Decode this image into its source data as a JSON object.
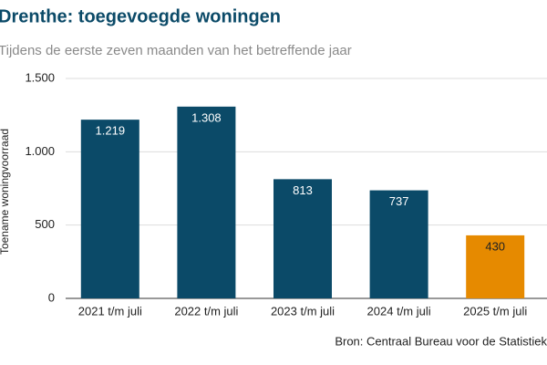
{
  "chart_data": {
    "type": "bar",
    "title": "Drenthe: toegevoegde woningen",
    "subtitle": "Tijdens de eerste zeven maanden van het betreffende jaar",
    "y_label": "Toename woningvoorraad",
    "source": "Bron: Centraal Bureau voor de Statistiek",
    "categories": [
      "2021 t/m juli",
      "2022 t/m juli",
      "2023 t/m juli",
      "2024 t/m juli",
      "2025 t/m juli"
    ],
    "values": [
      1219,
      1308,
      813,
      737,
      430
    ],
    "value_labels": [
      "1.219",
      "1.308",
      "813",
      "737",
      "430"
    ],
    "colors": [
      "#0b4a68",
      "#0b4a68",
      "#0b4a68",
      "#0b4a68",
      "#e68a00"
    ],
    "label_colors": [
      "#ffffff",
      "#ffffff",
      "#ffffff",
      "#ffffff",
      "#222222"
    ],
    "ylim": [
      0,
      1500
    ],
    "yticks": [
      0,
      500,
      {
        "value": 1000,
        "label": "1.000"
      },
      {
        "value": 1500,
        "label": "1.500"
      }
    ],
    "grid": true
  }
}
